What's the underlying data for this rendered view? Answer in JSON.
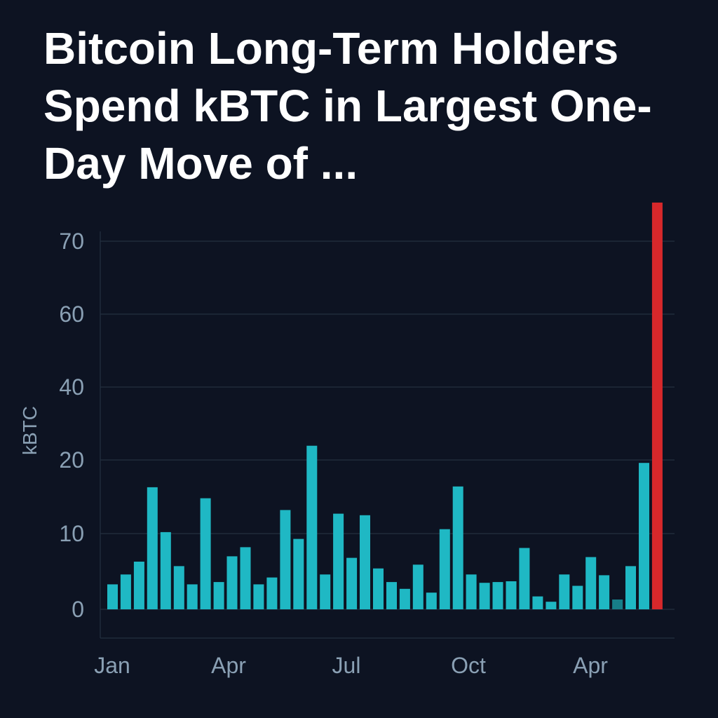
{
  "title_lines": [
    "Bitcoin Long-Term Holders",
    "Spend kBTC in Largest One-",
    "Day Move of ..."
  ],
  "colors": {
    "background": "#0d1322",
    "bar": "#1fb8c4",
    "bar_dim": "#177e88",
    "highlight_bar": "#d7282b",
    "grid": "#243040",
    "axis_text": "#8aa0b4",
    "title": "#ffffff"
  },
  "chart_data": {
    "type": "bar",
    "title": "Bitcoin Long-Term Holders Spend kBTC in Largest One-Day Move of ...",
    "ylabel": "kBTC",
    "xlabel": "",
    "y_tick_labels": [
      "0",
      "10",
      "20",
      "40",
      "60",
      "70"
    ],
    "x_tick_labels": [
      "Jan",
      "Apr",
      "Jul",
      "Oct",
      "Apr"
    ],
    "grid": true,
    "values": [
      3.3,
      4.6,
      6.3,
      16.3,
      10.2,
      5.7,
      3.3,
      14.8,
      3.6,
      7.0,
      8.2,
      3.3,
      4.2,
      13.2,
      9.3,
      23.9,
      4.6,
      12.7,
      6.8,
      12.5,
      5.4,
      3.6,
      2.7,
      5.9,
      2.2,
      10.6,
      16.4,
      4.6,
      3.5,
      3.6,
      3.7,
      8.1,
      1.7,
      1.0,
      4.6,
      3.1,
      6.9,
      4.5,
      1.3,
      5.7,
      19.6,
      75.3
    ],
    "dim_bar_indices": [
      38
    ],
    "highlight_bar_index": 41
  }
}
